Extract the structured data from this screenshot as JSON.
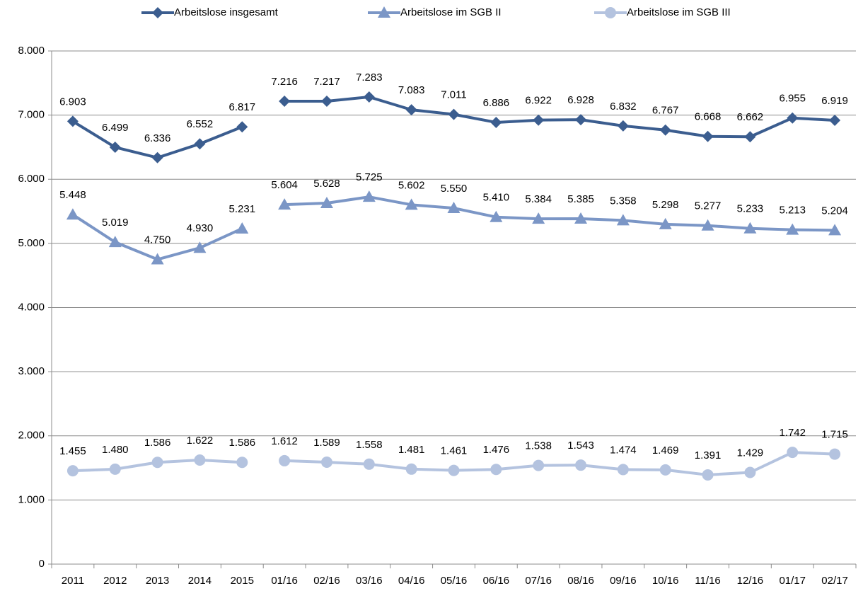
{
  "chart_data": {
    "type": "line",
    "categories": [
      "2011",
      "2012",
      "2013",
      "2014",
      "2015",
      "01/16",
      "02/16",
      "03/16",
      "04/16",
      "05/16",
      "06/16",
      "07/16",
      "08/16",
      "09/16",
      "10/16",
      "11/16",
      "12/16",
      "01/17",
      "02/17"
    ],
    "series": [
      {
        "name": "Arbeitslose insgesamt",
        "color": "#3b5d8f",
        "marker": "diamond",
        "values": [
          6903,
          6499,
          6336,
          6552,
          6817,
          7216,
          7217,
          7283,
          7083,
          7011,
          6886,
          6922,
          6928,
          6832,
          6767,
          6668,
          6662,
          6955,
          6919
        ],
        "value_labels": [
          "6.903",
          "6.499",
          "6.336",
          "6.552",
          "6.817",
          "7.216",
          "7.217",
          "7.283",
          "7.083",
          "7.011",
          "6.886",
          "6.922",
          "6.928",
          "6.832",
          "6.767",
          "6.668",
          "6.662",
          "6.955",
          "6.919"
        ]
      },
      {
        "name": "Arbeitslose im SGB II",
        "color": "#7b96c6",
        "marker": "triangle",
        "values": [
          5448,
          5019,
          4750,
          4930,
          5231,
          5604,
          5628,
          5725,
          5602,
          5550,
          5410,
          5384,
          5385,
          5358,
          5298,
          5277,
          5233,
          5213,
          5204
        ],
        "value_labels": [
          "5.448",
          "5.019",
          "4.750",
          "4.930",
          "5.231",
          "5.604",
          "5.628",
          "5.725",
          "5.602",
          "5.550",
          "5.410",
          "5.384",
          "5.385",
          "5.358",
          "5.298",
          "5.277",
          "5.233",
          "5.213",
          "5.204"
        ]
      },
      {
        "name": "Arbeitslose im SGB III",
        "color": "#b4c3df",
        "marker": "circle",
        "values": [
          1455,
          1480,
          1586,
          1622,
          1586,
          1612,
          1589,
          1558,
          1481,
          1461,
          1476,
          1538,
          1543,
          1474,
          1469,
          1391,
          1429,
          1742,
          1715
        ],
        "value_labels": [
          "1.455",
          "1.480",
          "1.586",
          "1.622",
          "1.586",
          "1.612",
          "1.589",
          "1.558",
          "1.481",
          "1.461",
          "1.476",
          "1.538",
          "1.543",
          "1.474",
          "1.469",
          "1.391",
          "1.429",
          "1.742",
          "1.715"
        ]
      }
    ],
    "ylim": [
      0,
      8000
    ],
    "yticks": [
      0,
      {
        "value": 1000,
        "label": "1.000"
      },
      {
        "value": 2000,
        "label": "2.000"
      },
      {
        "value": 3000,
        "label": "3.000"
      },
      {
        "value": 4000,
        "label": "4.000"
      },
      {
        "value": 5000,
        "label": "5.000"
      },
      {
        "value": 6000,
        "label": "6.000"
      },
      {
        "value": 7000,
        "label": "7.000"
      },
      {
        "value": 8000,
        "label": "8.000"
      }
    ],
    "grid": true,
    "line_break_after": 4,
    "legend": "top"
  }
}
